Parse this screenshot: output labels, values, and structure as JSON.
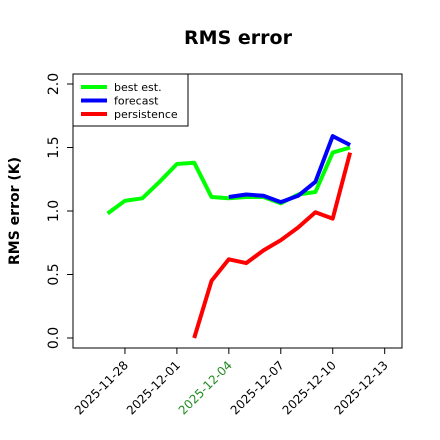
{
  "chart_data": {
    "type": "line",
    "title": "RMS error",
    "ylabel": "RMS error (K)",
    "xlabel": "",
    "ylim": [
      0.0,
      2.0
    ],
    "xlim": [
      "2025-11-25",
      "2025-12-14"
    ],
    "y_ticks": [
      "0.0",
      "0.5",
      "1.0",
      "1.5",
      "2.0"
    ],
    "x_ticks": [
      {
        "label": "2025-11-28",
        "date": "2025-11-28",
        "color": "#000000"
      },
      {
        "label": "2025-12-01",
        "date": "2025-12-01",
        "color": "#000000"
      },
      {
        "label": "2025-12-04",
        "date": "2025-12-04",
        "color": "#228B22"
      },
      {
        "label": "2025-12-07",
        "date": "2025-12-07",
        "color": "#000000"
      },
      {
        "label": "2025-12-10",
        "date": "2025-12-10",
        "color": "#000000"
      },
      {
        "label": "2025-12-13",
        "date": "2025-12-13",
        "color": "#000000"
      }
    ],
    "grid": false,
    "legend_position": "top-left",
    "series": [
      {
        "name": "best est.",
        "color": "#00ff00",
        "points": [
          {
            "x": "2025-11-27",
            "y": 0.98
          },
          {
            "x": "2025-11-28",
            "y": 1.08
          },
          {
            "x": "2025-11-29",
            "y": 1.1
          },
          {
            "x": "2025-11-30",
            "y": 1.23
          },
          {
            "x": "2025-12-01",
            "y": 1.37
          },
          {
            "x": "2025-12-02",
            "y": 1.38
          },
          {
            "x": "2025-12-03",
            "y": 1.11
          },
          {
            "x": "2025-12-04",
            "y": 1.1
          },
          {
            "x": "2025-12-05",
            "y": 1.11
          },
          {
            "x": "2025-12-06",
            "y": 1.11
          },
          {
            "x": "2025-12-07",
            "y": 1.06
          },
          {
            "x": "2025-12-08",
            "y": 1.13
          },
          {
            "x": "2025-12-09",
            "y": 1.15
          },
          {
            "x": "2025-12-10",
            "y": 1.46
          },
          {
            "x": "2025-12-11",
            "y": 1.5
          }
        ]
      },
      {
        "name": "forecast",
        "color": "#0000ff",
        "points": [
          {
            "x": "2025-12-04",
            "y": 1.11
          },
          {
            "x": "2025-12-05",
            "y": 1.13
          },
          {
            "x": "2025-12-06",
            "y": 1.12
          },
          {
            "x": "2025-12-07",
            "y": 1.07
          },
          {
            "x": "2025-12-08",
            "y": 1.12
          },
          {
            "x": "2025-12-09",
            "y": 1.23
          },
          {
            "x": "2025-12-10",
            "y": 1.59
          },
          {
            "x": "2025-12-11",
            "y": 1.52
          }
        ]
      },
      {
        "name": "persistence",
        "color": "#ff0000",
        "points": [
          {
            "x": "2025-12-02",
            "y": 0.0
          },
          {
            "x": "2025-12-03",
            "y": 0.45
          },
          {
            "x": "2025-12-04",
            "y": 0.62
          },
          {
            "x": "2025-12-05",
            "y": 0.59
          },
          {
            "x": "2025-12-06",
            "y": 0.69
          },
          {
            "x": "2025-12-07",
            "y": 0.77
          },
          {
            "x": "2025-12-08",
            "y": 0.87
          },
          {
            "x": "2025-12-09",
            "y": 0.99
          },
          {
            "x": "2025-12-10",
            "y": 0.94
          },
          {
            "x": "2025-12-11",
            "y": 1.46
          }
        ]
      }
    ]
  }
}
